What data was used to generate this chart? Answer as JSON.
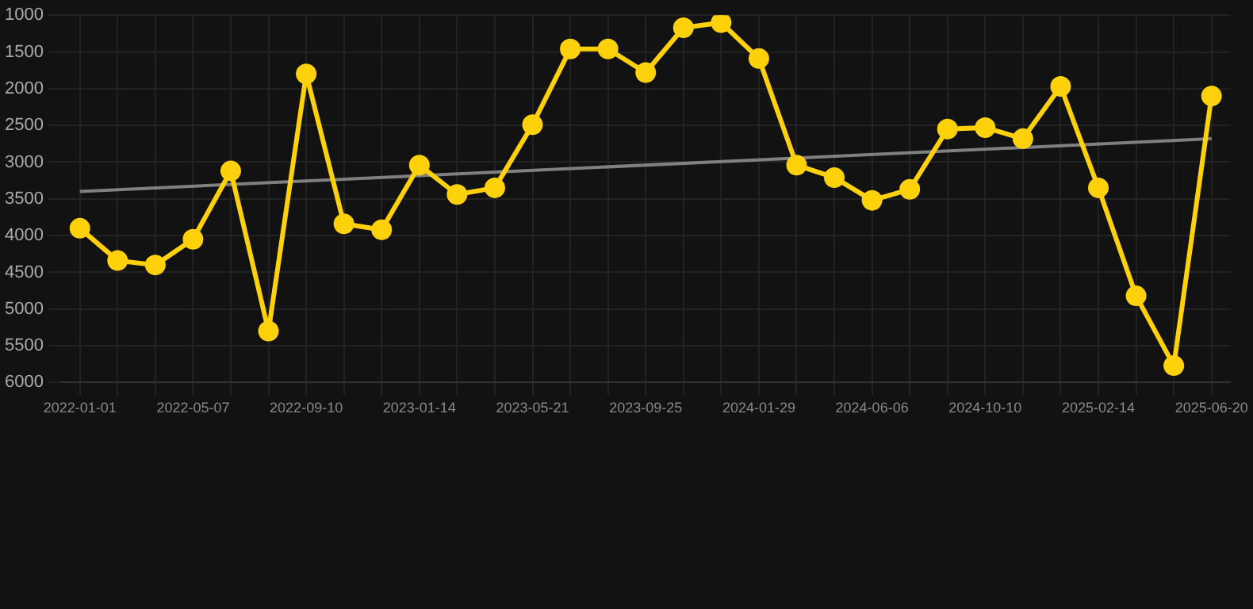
{
  "chart_data": {
    "type": "line",
    "categories": [
      "2022-01-01",
      null,
      null,
      "2022-05-07",
      null,
      null,
      "2022-09-10",
      null,
      null,
      "2023-01-14",
      null,
      null,
      "2023-05-21",
      null,
      null,
      "2023-09-25",
      null,
      null,
      "2024-01-29",
      null,
      null,
      "2024-06-06",
      null,
      null,
      "2024-10-10",
      null,
      null,
      "2025-02-14",
      null,
      null,
      "2025-06-20"
    ],
    "series": [
      {
        "color": "#ffd10a",
        "values": [
          3900,
          4340,
          4400,
          4050,
          3120,
          5300,
          1800,
          3840,
          3920,
          3040,
          3440,
          3350,
          2490,
          1460,
          1460,
          1780,
          1170,
          1100,
          1590,
          3040,
          3210,
          3520,
          3370,
          2550,
          2530,
          2680,
          1970,
          3350,
          4820,
          5770,
          2100
        ]
      },
      {
        "type": "line",
        "color": "#808080",
        "marker": "none",
        "values": [
          3400,
          null,
          null,
          null,
          null,
          null,
          null,
          null,
          null,
          null,
          null,
          null,
          null,
          null,
          null,
          null,
          null,
          null,
          null,
          null,
          null,
          null,
          null,
          null,
          null,
          null,
          null,
          null,
          null,
          null,
          2680
        ]
      }
    ],
    "ylim": [
      6000,
      1000
    ],
    "yticks": [
      1000,
      1500,
      2000,
      2500,
      3000,
      3500,
      4000,
      4500,
      5000,
      5500,
      6000
    ],
    "grid": true,
    "marker": "circle",
    "legend": false
  }
}
